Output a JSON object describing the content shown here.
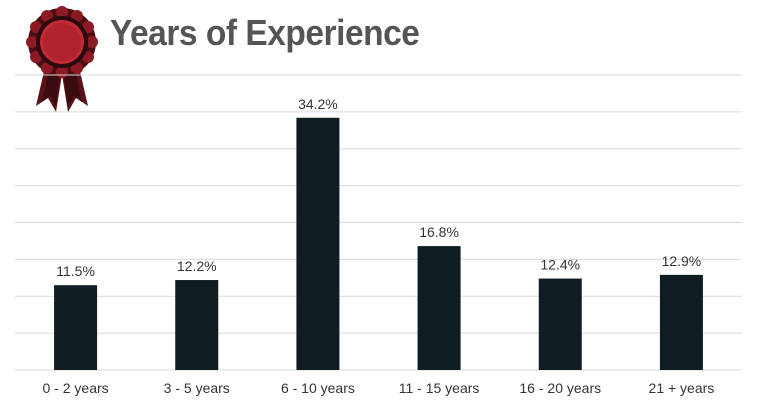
{
  "chart_data": {
    "type": "bar",
    "title": "Years of Experience",
    "categories": [
      "0 - 2 years",
      "3 - 5 years",
      "6 - 10 years",
      "11 - 15 years",
      "16 - 20 years",
      "21 + years"
    ],
    "values": [
      11.5,
      12.2,
      34.2,
      16.8,
      12.4,
      12.9
    ],
    "value_labels": [
      "11.5%",
      "12.2%",
      "34.2%",
      "16.8%",
      "12.4%",
      "12.9%"
    ],
    "xlabel": "",
    "ylabel": "",
    "ylim": [
      0,
      40
    ],
    "grid": true,
    "legend": "none",
    "bar_color": "#0f1c22"
  },
  "icon": "award-ribbon-icon",
  "colors": {
    "ribbon": "#8b1a24",
    "ribbon_dark": "#3a0c10",
    "title": "#555555"
  }
}
